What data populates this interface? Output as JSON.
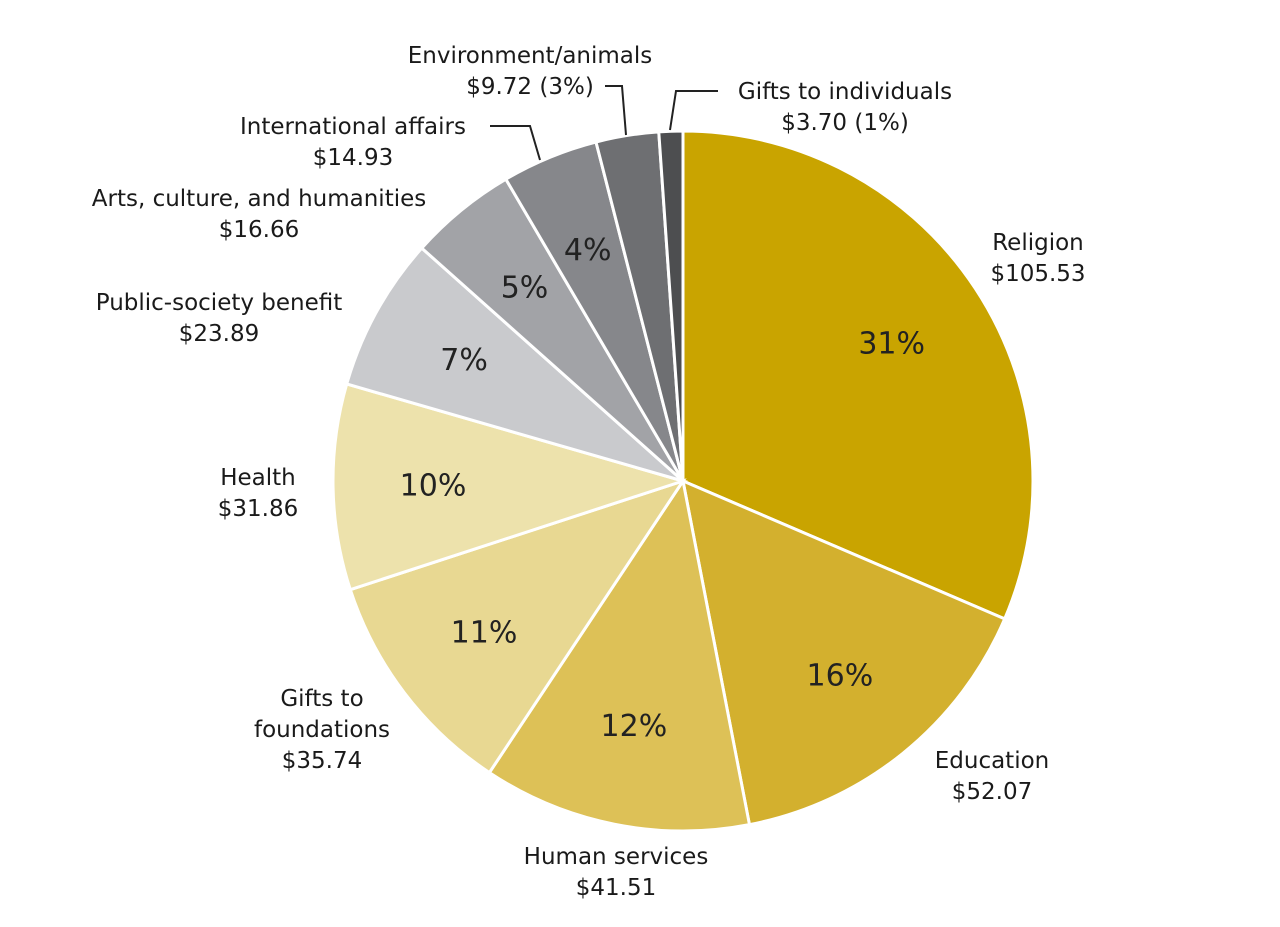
{
  "chart_data": {
    "type": "pie",
    "start": "top, clockwise",
    "slices": [
      {
        "name": "Religion",
        "value": 105.53,
        "value_label": "$105.53",
        "percent_label": "31%",
        "color": "#C9A400"
      },
      {
        "name": "Education",
        "value": 52.07,
        "value_label": "$52.07",
        "percent_label": "16%",
        "color": "#D3B02E"
      },
      {
        "name": "Human services",
        "value": 41.51,
        "value_label": "$41.51",
        "percent_label": "12%",
        "color": "#DDC157"
      },
      {
        "name": "Gifts to foundations",
        "value": 35.74,
        "value_label": "$35.74",
        "percent_label": "11%",
        "color": "#E8D892"
      },
      {
        "name": "Health",
        "value": 31.86,
        "value_label": "$31.86",
        "percent_label": "10%",
        "color": "#EDE2AC"
      },
      {
        "name": "Public-society benefit",
        "value": 23.89,
        "value_label": "$23.89",
        "percent_label": "7%",
        "color": "#C9CACD"
      },
      {
        "name": "Arts, culture, and humanities",
        "value": 16.66,
        "value_label": "$16.66",
        "percent_label": "5%",
        "color": "#A2A3A7"
      },
      {
        "name": "International affairs",
        "value": 14.93,
        "value_label": "$14.93",
        "percent_label": "4%",
        "color": "#86878B"
      },
      {
        "name": "Environment/animals",
        "value": 9.72,
        "value_label": "$9.72 (3%)",
        "percent_label": "",
        "color": "#6E6F72"
      },
      {
        "name": "Gifts to individuals",
        "value": 3.7,
        "value_label": "$3.70 (1%)",
        "percent_label": "",
        "color": "#4D4E50"
      }
    ]
  }
}
